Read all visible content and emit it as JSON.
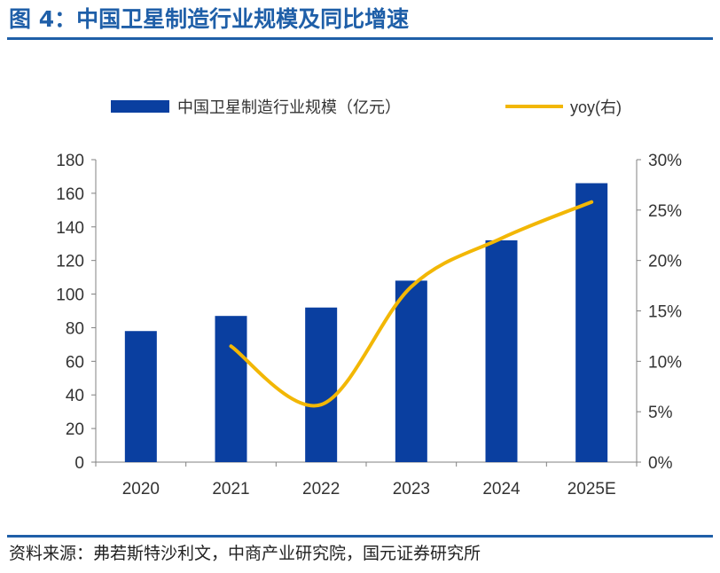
{
  "header": {
    "title": "图 4：中国卫星制造行业规模及同比增速"
  },
  "footer": {
    "source": "资料来源：弗若斯特沙利文，中商产业研究院，国元证券研究所"
  },
  "colors": {
    "accent": "#1f5fa8",
    "bar": "#0a3fa0",
    "line": "#f2b705",
    "axis": "#808080"
  },
  "chart_data": {
    "type": "bar",
    "categories": [
      "2020",
      "2021",
      "2022",
      "2023",
      "2024",
      "2025E"
    ],
    "series": [
      {
        "name": "中国卫星制造行业规模（亿元）",
        "type": "bar",
        "axis": "left",
        "values": [
          78,
          87,
          92,
          108,
          132,
          166
        ]
      },
      {
        "name": "yoy(右)",
        "type": "line",
        "axis": "right",
        "values": [
          null,
          11.5,
          5.7,
          17.4,
          22.2,
          25.8
        ]
      }
    ],
    "y_left": {
      "ylim": [
        0,
        180
      ],
      "ticks": [
        "0",
        "20",
        "40",
        "60",
        "80",
        "100",
        "120",
        "140",
        "160",
        "180"
      ]
    },
    "y_right": {
      "ylim": [
        0,
        30
      ],
      "ticks": [
        "0%",
        "5%",
        "10%",
        "15%",
        "20%",
        "25%",
        "30%"
      ]
    },
    "legend": "top",
    "grid": false
  }
}
